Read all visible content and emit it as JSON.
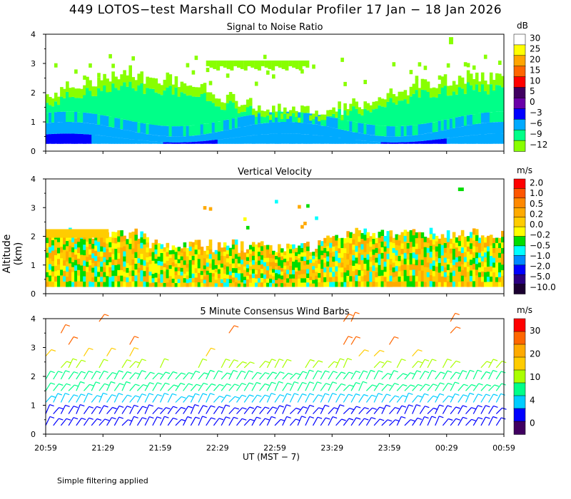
{
  "title": "449 LOTOS−test Marshall CO Modular Profiler 17 Jan − 18 Jan 2026",
  "y_axis_label": "Altitude (km)",
  "x_axis_label": "UT  (MST − 7)",
  "footnote": "Simple filtering applied",
  "x_ticks": [
    "20:59",
    "21:29",
    "21:59",
    "22:29",
    "22:59",
    "23:29",
    "23:59",
    "00:29",
    "00:59"
  ],
  "y_ticks": [
    "0",
    "1",
    "2",
    "3",
    "4"
  ],
  "chart_data": [
    {
      "type": "heatmap",
      "title": "Signal to Noise Ratio",
      "unit": "dB",
      "ylim": [
        0,
        4
      ],
      "x_hours": [
        0,
        4
      ],
      "colorbar_labels": [
        "30",
        "25",
        "20",
        "15",
        "10",
        "5",
        "0",
        "−3",
        "−6",
        "−9",
        "−12"
      ],
      "colors": [
        "#ffffff",
        "#ffff00",
        "#ffa500",
        "#ff6600",
        "#ff0000",
        "#400060",
        "#6a00a8",
        "#0000ff",
        "#00aaff",
        "#00ff88",
        "#88ff00"
      ],
      "profile_bands_km": {
        "level_thresholds_dB": [
          5,
          0,
          -3,
          -6,
          -9,
          -12
        ],
        "typical_top_km": 2.2,
        "sparse_max_km": 3.9
      }
    },
    {
      "type": "heatmap",
      "title": "Vertical Velocity",
      "unit": "m/s",
      "ylim": [
        0,
        4
      ],
      "x_hours": [
        0,
        4
      ],
      "colorbar_labels": [
        "2.0",
        "1.0",
        "0.5",
        "0.2",
        "0.0",
        "−0.2",
        "−0.5",
        "−1.0",
        "−2.0",
        "−5.0",
        "−10.0"
      ],
      "colors": [
        "#ff0000",
        "#ff5500",
        "#ff8800",
        "#ffaa00",
        "#ffcc00",
        "#ffff00",
        "#00dd00",
        "#00ffff",
        "#0088ff",
        "#0000ff",
        "#2a0080",
        "#1a0030"
      ],
      "typical_top_km": 2.2,
      "sparse_max_km": 3.7
    },
    {
      "type": "scatter",
      "title": "5 Minute Consensus Wind Barbs",
      "unit": "m/s",
      "ylim": [
        0,
        4
      ],
      "x_hours": [
        0,
        4
      ],
      "colorbar_labels": [
        "30",
        "20",
        "10",
        "4",
        "0"
      ],
      "colors": [
        "#ff0000",
        "#ff6600",
        "#ffaa00",
        "#ffcc00",
        "#aaff00",
        "#00ff88",
        "#00ccff",
        "#0000ff",
        "#400060"
      ],
      "levels_km": [
        0.3,
        0.7,
        1.1,
        1.5,
        1.9,
        2.3,
        2.7,
        3.1,
        3.5,
        3.9
      ],
      "speed_range_ms": [
        0,
        35
      ],
      "barb_direction": "from northwest"
    }
  ]
}
